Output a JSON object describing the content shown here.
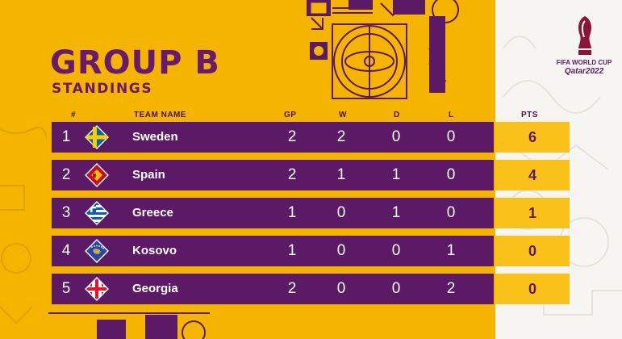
{
  "title": "GROUP B",
  "subtitle": "STANDINGS",
  "branding": {
    "line1": "FIFA WORLD CUP",
    "line2": "Qatar2022"
  },
  "headers": {
    "rank": "#",
    "team": "TEAM NAME",
    "gp": "GP",
    "w": "W",
    "d": "D",
    "l": "L",
    "pts": "PTS"
  },
  "rows": [
    {
      "rank": "1",
      "team": "Sweden",
      "gp": "2",
      "w": "2",
      "d": "0",
      "l": "0",
      "pts": "6",
      "flag": "sweden-flag-icon"
    },
    {
      "rank": "2",
      "team": "Spain",
      "gp": "2",
      "w": "1",
      "d": "1",
      "l": "0",
      "pts": "4",
      "flag": "spain-flag-icon"
    },
    {
      "rank": "3",
      "team": "Greece",
      "gp": "1",
      "w": "0",
      "d": "1",
      "l": "0",
      "pts": "1",
      "flag": "greece-flag-icon"
    },
    {
      "rank": "4",
      "team": "Kosovo",
      "gp": "1",
      "w": "0",
      "d": "0",
      "l": "1",
      "pts": "0",
      "flag": "kosovo-flag-icon"
    },
    {
      "rank": "5",
      "team": "Georgia",
      "gp": "2",
      "w": "0",
      "d": "0",
      "l": "2",
      "pts": "0",
      "flag": "georgia-flag-icon"
    }
  ],
  "colors": {
    "background": "#f4b400",
    "row": "#5c1a66",
    "pts_cell": "#f9c11a",
    "panel": "#f7f5f2"
  }
}
